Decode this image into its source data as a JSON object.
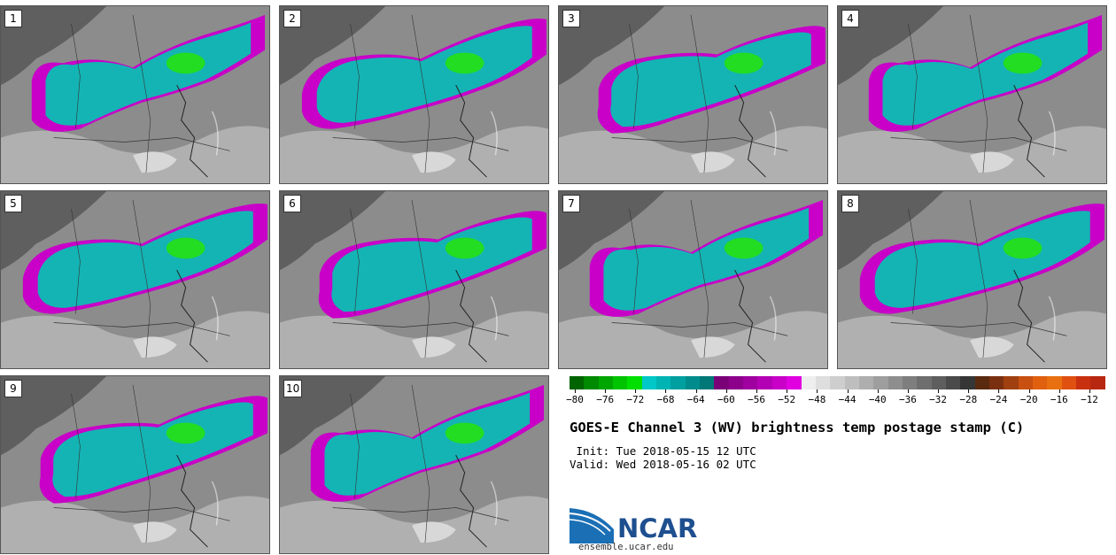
{
  "panels": [
    {
      "label": "1"
    },
    {
      "label": "2"
    },
    {
      "label": "3"
    },
    {
      "label": "4"
    },
    {
      "label": "5"
    },
    {
      "label": "6"
    },
    {
      "label": "7"
    },
    {
      "label": "8"
    },
    {
      "label": "9"
    },
    {
      "label": "10"
    }
  ],
  "colorbar": {
    "ticks": [
      "−80",
      "−76",
      "−72",
      "−68",
      "−64",
      "−60",
      "−56",
      "−52",
      "−48",
      "−44",
      "−40",
      "−36",
      "−32",
      "−28",
      "−24",
      "−20",
      "−16",
      "−12"
    ],
    "colors": [
      "#006400",
      "#008a00",
      "#00a600",
      "#00c400",
      "#00e000",
      "#00c8c8",
      "#00b4b4",
      "#00a0a0",
      "#008c8c",
      "#007878",
      "#7a0078",
      "#8c008c",
      "#a000a0",
      "#b400b4",
      "#c800c8",
      "#e000e0",
      "#eeeeee",
      "#dedede",
      "#cecece",
      "#bebebe",
      "#aeaeae",
      "#9e9e9e",
      "#8e8e8e",
      "#7e7e7e",
      "#6e6e6e",
      "#5e5e5e",
      "#4a4a4a",
      "#363636",
      "#5a2a10",
      "#7a3010",
      "#a04010",
      "#c85010",
      "#e06010",
      "#e87010",
      "#e05010",
      "#c83010",
      "#b82810"
    ]
  },
  "title": "GOES-E Channel 3 (WV) brightness temp postage stamp (C)",
  "init": " Init: Tue 2018-05-15 12 UTC",
  "valid": "Valid: Wed 2018-05-16 02 UTC",
  "logo_text": "NCAR",
  "website": "ensemble.ucar.edu"
}
